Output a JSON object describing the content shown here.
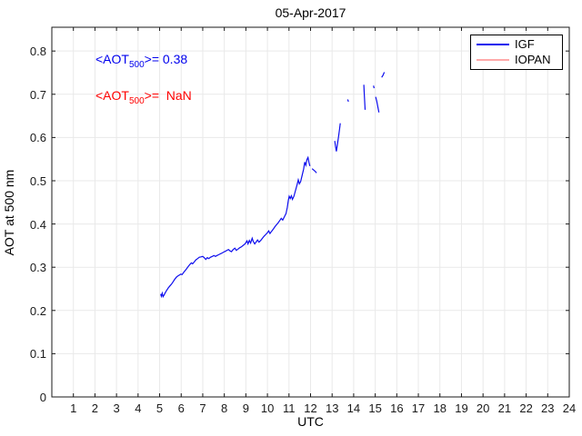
{
  "chart_data": {
    "type": "line",
    "title": "05-Apr-2017",
    "xlabel": "UTC",
    "ylabel": "AOT at 500 nm",
    "xlim": [
      0,
      24
    ],
    "ylim": [
      0,
      0.855
    ],
    "xticks": [
      1,
      2,
      3,
      4,
      5,
      6,
      7,
      8,
      9,
      10,
      11,
      12,
      13,
      14,
      15,
      16,
      17,
      18,
      19,
      20,
      21,
      22,
      23,
      24
    ],
    "yticks": [
      0,
      0.1,
      0.2,
      0.3,
      0.4,
      0.5,
      0.6,
      0.7,
      0.8
    ],
    "grid": true,
    "legend_position": "top-right",
    "colors": {
      "grid": "#e9e9e9",
      "axis": "#1a1a1a",
      "background": "#ffffff"
    },
    "series": [
      {
        "name": "IGF",
        "color": "#0d0dee",
        "mean_aot_500": 0.38,
        "segments": [
          [
            [
              5.05,
              0.238
            ],
            [
              5.08,
              0.233
            ],
            [
              5.12,
              0.24
            ],
            [
              5.16,
              0.232
            ],
            [
              5.21,
              0.236
            ],
            [
              5.26,
              0.241
            ],
            [
              5.32,
              0.246
            ],
            [
              5.4,
              0.252
            ],
            [
              5.48,
              0.257
            ],
            [
              5.55,
              0.261
            ],
            [
              5.62,
              0.266
            ],
            [
              5.7,
              0.272
            ],
            [
              5.78,
              0.277
            ],
            [
              5.85,
              0.28
            ],
            [
              5.92,
              0.282
            ],
            [
              5.98,
              0.284
            ],
            [
              6.04,
              0.283
            ],
            [
              6.1,
              0.287
            ],
            [
              6.18,
              0.292
            ],
            [
              6.26,
              0.297
            ],
            [
              6.33,
              0.302
            ],
            [
              6.4,
              0.306
            ],
            [
              6.47,
              0.31
            ],
            [
              6.53,
              0.308
            ],
            [
              6.6,
              0.312
            ],
            [
              6.68,
              0.317
            ],
            [
              6.76,
              0.32
            ],
            [
              6.84,
              0.323
            ],
            [
              6.92,
              0.324
            ],
            [
              7.0,
              0.325
            ],
            [
              7.07,
              0.322
            ],
            [
              7.14,
              0.318
            ],
            [
              7.21,
              0.322
            ],
            [
              7.28,
              0.32
            ],
            [
              7.36,
              0.323
            ],
            [
              7.44,
              0.325
            ],
            [
              7.52,
              0.327
            ],
            [
              7.59,
              0.325
            ],
            [
              7.66,
              0.327
            ],
            [
              7.74,
              0.329
            ],
            [
              7.82,
              0.331
            ],
            [
              7.9,
              0.333
            ],
            [
              7.97,
              0.335
            ],
            [
              8.05,
              0.337
            ],
            [
              8.12,
              0.339
            ],
            [
              8.19,
              0.341
            ],
            [
              8.26,
              0.338
            ],
            [
              8.33,
              0.336
            ],
            [
              8.41,
              0.341
            ],
            [
              8.49,
              0.344
            ],
            [
              8.56,
              0.339
            ],
            [
              8.64,
              0.342
            ],
            [
              8.71,
              0.345
            ],
            [
              8.79,
              0.347
            ],
            [
              8.86,
              0.35
            ],
            [
              8.94,
              0.353
            ],
            [
              9.0,
              0.357
            ],
            [
              9.05,
              0.361
            ],
            [
              9.1,
              0.354
            ],
            [
              9.16,
              0.362
            ],
            [
              9.22,
              0.356
            ],
            [
              9.29,
              0.367
            ],
            [
              9.34,
              0.36
            ],
            [
              9.41,
              0.354
            ],
            [
              9.47,
              0.358
            ],
            [
              9.54,
              0.363
            ],
            [
              9.61,
              0.358
            ],
            [
              9.69,
              0.362
            ],
            [
              9.77,
              0.367
            ],
            [
              9.85,
              0.372
            ],
            [
              9.93,
              0.376
            ],
            [
              10.0,
              0.38
            ],
            [
              10.06,
              0.384
            ],
            [
              10.12,
              0.378
            ],
            [
              10.19,
              0.383
            ],
            [
              10.27,
              0.388
            ],
            [
              10.34,
              0.393
            ],
            [
              10.42,
              0.398
            ],
            [
              10.5,
              0.403
            ],
            [
              10.57,
              0.408
            ],
            [
              10.64,
              0.413
            ],
            [
              10.71,
              0.409
            ],
            [
              10.79,
              0.417
            ],
            [
              10.86,
              0.424
            ],
            [
              10.92,
              0.438
            ],
            [
              10.97,
              0.455
            ],
            [
              11.01,
              0.464
            ],
            [
              11.06,
              0.459
            ],
            [
              11.11,
              0.465
            ],
            [
              11.16,
              0.457
            ],
            [
              11.23,
              0.464
            ],
            [
              11.3,
              0.477
            ],
            [
              11.37,
              0.49
            ],
            [
              11.43,
              0.502
            ],
            [
              11.48,
              0.493
            ],
            [
              11.54,
              0.498
            ],
            [
              11.61,
              0.513
            ],
            [
              11.68,
              0.527
            ],
            [
              11.73,
              0.543
            ],
            [
              11.78,
              0.536
            ],
            [
              11.83,
              0.549
            ],
            [
              11.88,
              0.554
            ],
            [
              11.93,
              0.542
            ],
            [
              11.97,
              0.534
            ]
          ],
          [
            [
              12.07,
              0.528
            ],
            [
              12.14,
              0.525
            ],
            [
              12.21,
              0.522
            ],
            [
              12.28,
              0.518
            ]
          ],
          [
            [
              13.12,
              0.592
            ],
            [
              13.16,
              0.579
            ],
            [
              13.2,
              0.568
            ],
            [
              13.25,
              0.585
            ],
            [
              13.3,
              0.602
            ],
            [
              13.34,
              0.618
            ],
            [
              13.38,
              0.633
            ]
          ],
          [
            [
              13.72,
              0.688
            ],
            [
              13.76,
              0.683
            ]
          ],
          [
            [
              14.47,
              0.722
            ],
            [
              14.49,
              0.704
            ],
            [
              14.51,
              0.684
            ],
            [
              14.53,
              0.664
            ]
          ],
          [
            [
              14.92,
              0.72
            ],
            [
              14.95,
              0.714
            ]
          ],
          [
            [
              15.02,
              0.694
            ],
            [
              15.07,
              0.684
            ],
            [
              15.12,
              0.671
            ],
            [
              15.17,
              0.658
            ]
          ],
          [
            [
              15.3,
              0.739
            ],
            [
              15.36,
              0.744
            ],
            [
              15.42,
              0.751
            ]
          ]
        ]
      },
      {
        "name": "IOPAN",
        "color": "#ffaaaa",
        "mean_aot_500": "NaN",
        "segments": []
      }
    ]
  },
  "annotations": {
    "igf": {
      "pre": "<AOT",
      "sub": "500",
      "post": ">= 0.38",
      "color": "#0000ee"
    },
    "iopan": {
      "pre": "<AOT",
      "sub": "500",
      "post": ">=  NaN",
      "color": "#ff0000"
    }
  }
}
